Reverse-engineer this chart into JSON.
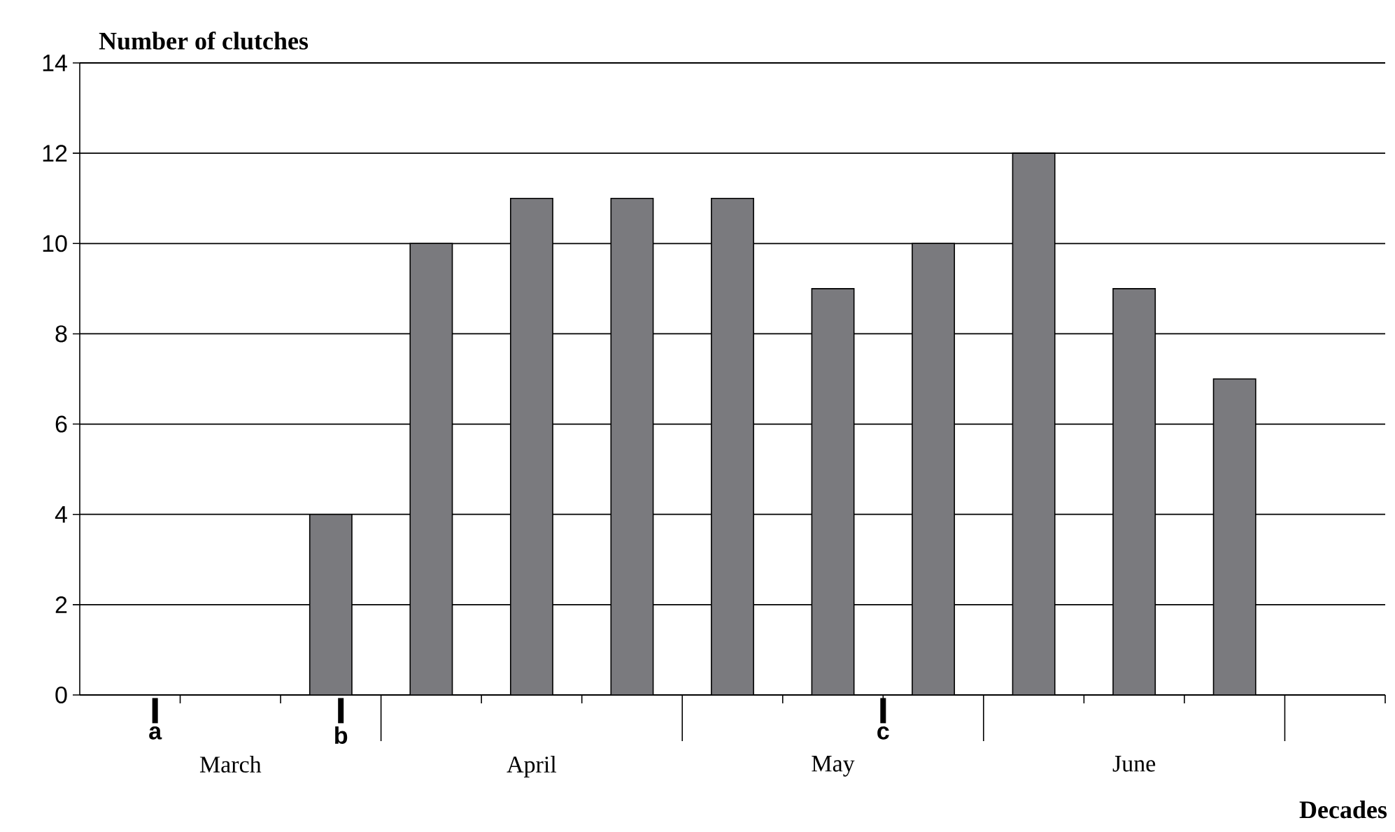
{
  "chart_data": {
    "type": "bar",
    "ylabel": "Number of clutches",
    "xlabel": "Decades",
    "categories": [
      null,
      null,
      null,
      null,
      null,
      null,
      null,
      null,
      null,
      null,
      null,
      null,
      null
    ],
    "values": [
      0,
      0,
      4,
      10,
      11,
      11,
      11,
      9,
      10,
      12,
      9,
      7,
      null
    ],
    "color": "#7a7a7e",
    "ylim": [
      0,
      14
    ],
    "yticks": [
      0,
      2,
      4,
      6,
      8,
      10,
      12,
      14
    ],
    "grid": "y",
    "annotations": [
      "March",
      "April",
      "May",
      "June",
      "a",
      "b",
      "c"
    ]
  }
}
